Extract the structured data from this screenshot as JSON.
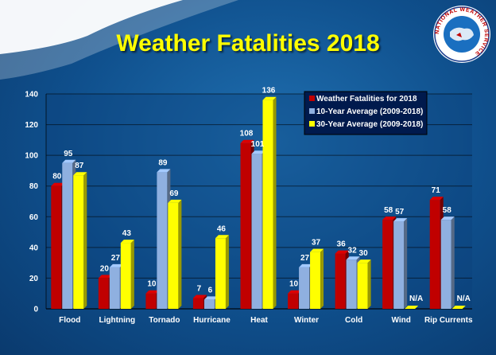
{
  "chart_data": {
    "type": "bar",
    "title": "Weather Fatalities 2018",
    "categories": [
      "Flood",
      "Lightning",
      "Tornado",
      "Hurricane",
      "Heat",
      "Winter",
      "Cold",
      "Wind",
      "Rip Currents"
    ],
    "series": [
      {
        "name": "Weather Fatalities for 2018",
        "color": "#c00000",
        "values": [
          80,
          20,
          10,
          7,
          108,
          10,
          36,
          58,
          71
        ],
        "labels": [
          "80",
          "20",
          "10",
          "7",
          "108",
          "10",
          "36",
          "58",
          "71"
        ]
      },
      {
        "name": "10-Year Average (2009-2018)",
        "color": "#8fb0e0",
        "values": [
          95,
          27,
          89,
          6,
          101,
          27,
          32,
          57,
          58
        ],
        "labels": [
          "95",
          "27",
          "89",
          "6",
          "101",
          "27",
          "32",
          "57",
          "58"
        ]
      },
      {
        "name": "30-Year Average (2009-2018)",
        "color": "#ffff00",
        "values": [
          87,
          43,
          69,
          46,
          136,
          37,
          30,
          null,
          null
        ],
        "labels": [
          "87",
          "43",
          "69",
          "46",
          "136",
          "37",
          "30",
          "N/A",
          "N/A"
        ]
      }
    ],
    "ylim": [
      0,
      140
    ],
    "yticks": [
      0,
      20,
      40,
      60,
      80,
      100,
      120,
      140
    ],
    "grid": true,
    "legend": "top-right"
  },
  "logo": {
    "text": "NATIONAL WEATHER SERVICE",
    "colors": {
      "ring": "#1a3d8f",
      "inner": "#ffffff",
      "map": "#1a6fc0"
    }
  }
}
